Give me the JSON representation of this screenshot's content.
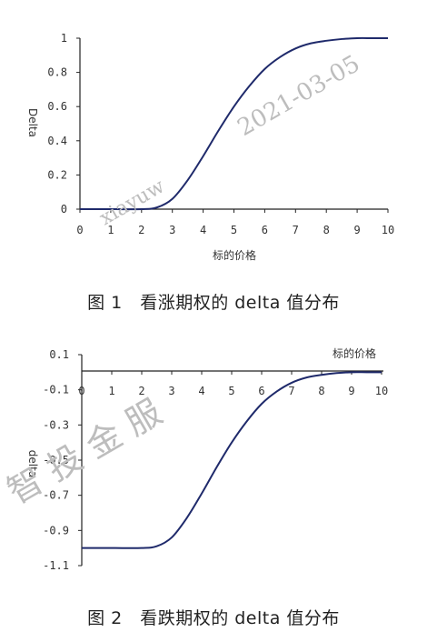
{
  "chart_data": [
    {
      "type": "line",
      "xlabel": "标的价格",
      "ylabel": "Delta",
      "xlim": [
        0,
        10
      ],
      "ylim": [
        0,
        1
      ],
      "xticks": [
        "0",
        "1",
        "2",
        "3",
        "4",
        "5",
        "6",
        "7",
        "8",
        "9",
        "10"
      ],
      "yticks": [
        "0",
        "0.2",
        "0.4",
        "0.6",
        "0.8",
        "1"
      ],
      "x": [
        0,
        1,
        2,
        2.5,
        3,
        3.5,
        4,
        4.5,
        5,
        5.5,
        6,
        6.5,
        7,
        7.5,
        8,
        8.5,
        9,
        9.5,
        10
      ],
      "y": [
        0,
        0,
        0,
        0.01,
        0.06,
        0.17,
        0.31,
        0.46,
        0.6,
        0.72,
        0.82,
        0.89,
        0.94,
        0.97,
        0.985,
        0.995,
        1,
        1,
        1
      ],
      "series_color": "#1f2a6b"
    },
    {
      "type": "line",
      "xlabel": "标的价格",
      "ylabel": "delta",
      "xlim": [
        0,
        10
      ],
      "ylim": [
        -1.1,
        0.1
      ],
      "xticks": [
        "0",
        "1",
        "2",
        "3",
        "4",
        "5",
        "6",
        "7",
        "8",
        "9",
        "10"
      ],
      "yticks": [
        "0.1",
        "-0.1",
        "-0.3",
        "-0.5",
        "-0.7",
        "-0.9",
        "-1.1"
      ],
      "x": [
        0,
        1,
        2,
        2.5,
        3,
        3.5,
        4,
        4.5,
        5,
        5.5,
        6,
        6.5,
        7,
        7.5,
        8,
        8.5,
        9,
        9.5,
        10
      ],
      "y": [
        -1,
        -1,
        -1,
        -0.99,
        -0.94,
        -0.83,
        -0.69,
        -0.54,
        -0.4,
        -0.28,
        -0.18,
        -0.11,
        -0.06,
        -0.03,
        -0.015,
        -0.005,
        0,
        0,
        0
      ],
      "series_color": "#1f2a6b"
    }
  ],
  "captions": {
    "fig1": "图 1　看涨期权的 delta 值分布",
    "fig2": "图 2　看跌期权的 delta 值分布"
  },
  "watermarks": {
    "date": "2021-03-05",
    "mark1": "xiayuw",
    "mark2": "智 投 金 服"
  }
}
